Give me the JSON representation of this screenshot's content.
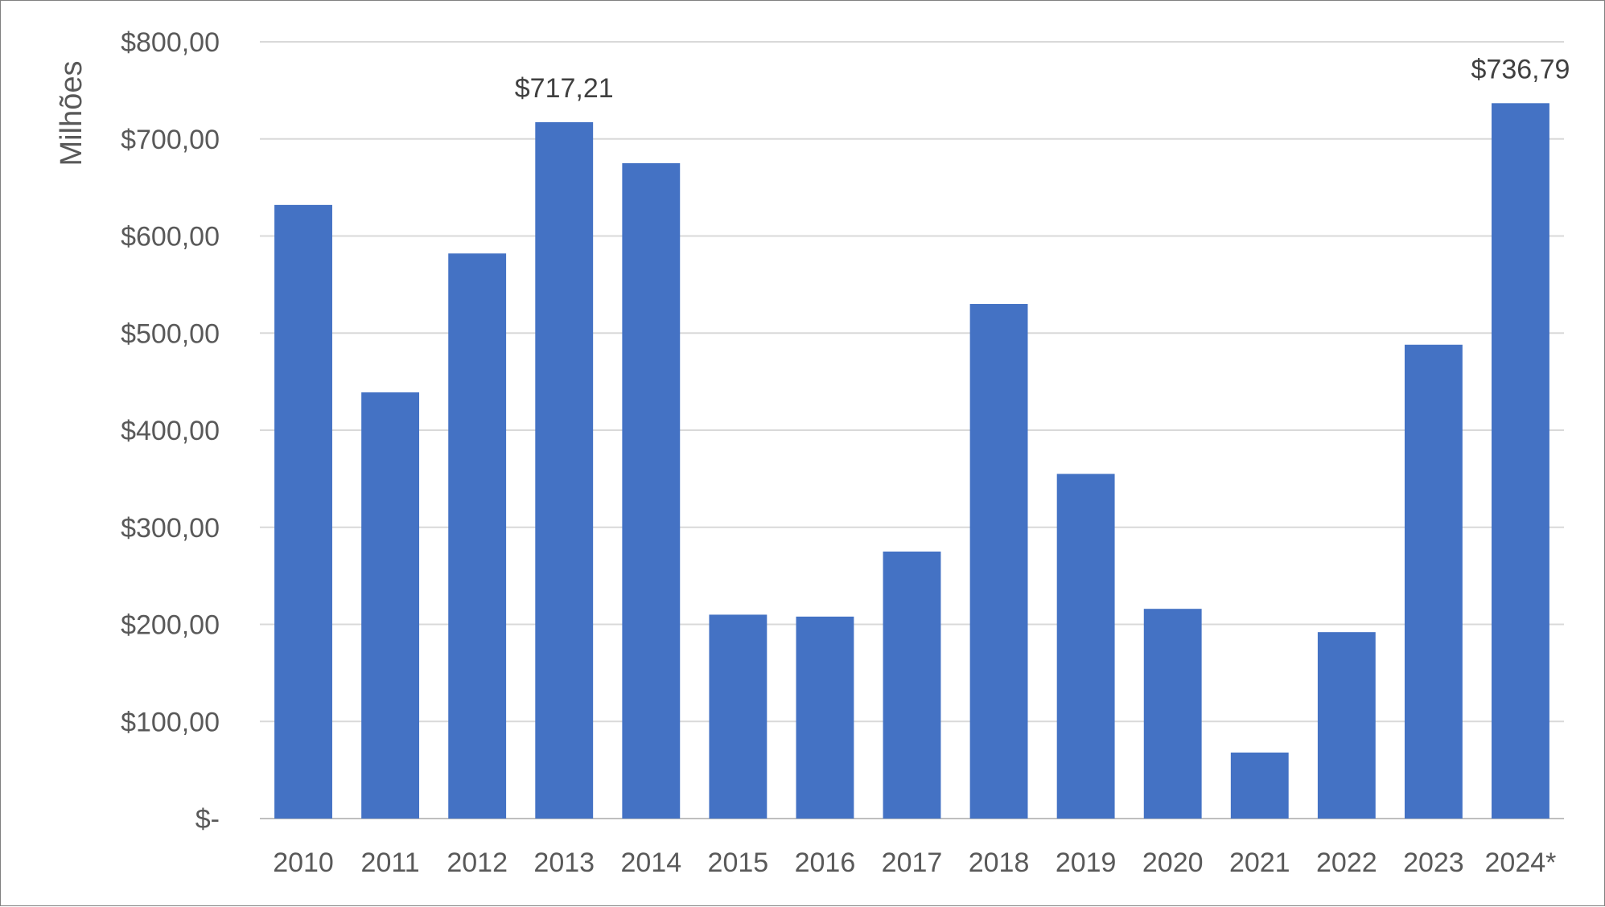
{
  "chart_data": {
    "type": "bar",
    "ylabel": "Milhões",
    "ylim": [
      0,
      800
    ],
    "ytick_values": [
      0,
      100,
      200,
      300,
      400,
      500,
      600,
      700,
      800
    ],
    "ytick_labels": [
      "$-",
      "$100,00",
      "$200,00",
      "$300,00",
      "$400,00",
      "$500,00",
      "$600,00",
      "$700,00",
      "$800,00"
    ],
    "categories": [
      "2010",
      "2011",
      "2012",
      "2013",
      "2014",
      "2015",
      "2016",
      "2017",
      "2018",
      "2019",
      "2020",
      "2021",
      "2022",
      "2023",
      "2024*"
    ],
    "values": [
      632,
      439,
      582,
      717.21,
      675,
      210,
      208,
      275,
      530,
      355,
      216,
      68,
      192,
      488,
      736.79
    ],
    "data_labels": [
      {
        "category": "2013",
        "text": "$717,21"
      },
      {
        "category": "2024*",
        "text": "$736,79"
      }
    ],
    "bar_color": "#4472C4",
    "grid_color": "#D9D9D9",
    "grid": true,
    "legend": "none"
  }
}
